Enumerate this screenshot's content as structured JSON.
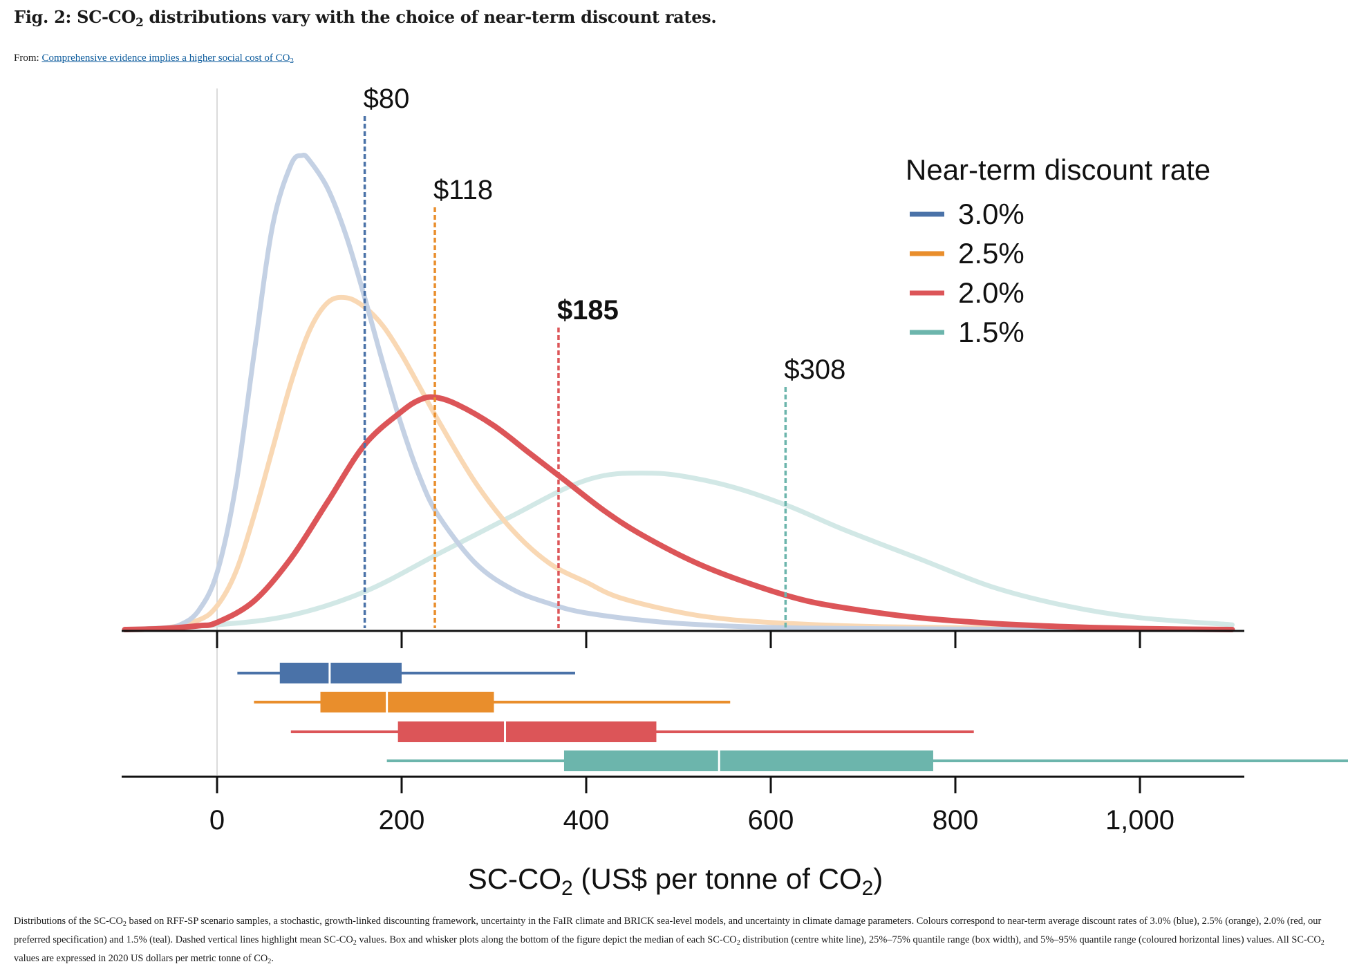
{
  "figure": {
    "title_prefix": "Fig. 2: SC-CO",
    "title_sub": "2",
    "title_suffix": " distributions vary with the choice of near-term discount rates.",
    "from_label": "From: ",
    "from_link_prefix": "Comprehensive evidence implies a higher social cost of CO",
    "from_link_sub": "2",
    "caption_parts": [
      "Distributions of the SC-CO",
      "2",
      " based on RFF-SP scenario samples, a stochastic, growth-linked discounting framework, uncertainty in the FaIR climate and BRICK sea-level models, and uncertainty in climate damage parameters. Colours correspond to near-term average discount rates of 3.0% (blue), 2.5% (orange), 2.0% (red, our preferred specification) and 1.5% (teal). Dashed vertical lines highlight mean SC-CO",
      "2",
      " values. Box and whisker plots along the bottom of the figure depict the median of each SC-CO",
      "2",
      " distribution (centre white line), 25%–75% quantile range (box width), and 5%–95% quantile range (coloured horizontal lines) values. All SC-CO",
      "2",
      " values are expressed in 2020 US dollars per metric tonne of CO",
      "2",
      "."
    ]
  },
  "chart_data": {
    "type": "area",
    "xlim": [
      -50,
      550
    ],
    "ylim": [
      0,
      1.1
    ],
    "x_ticks": [
      0,
      100,
      200,
      300,
      400,
      500
    ],
    "x_tick_labels": [
      "0",
      "200",
      "400",
      "600",
      "800",
      "1,000"
    ],
    "xlabel_prefix": "SC-CO",
    "xlabel_sub": "2",
    "xlabel_mid": " (US$ per tonne of CO",
    "xlabel_sub2": "2",
    "xlabel_suffix": ")",
    "grid": false,
    "legend_title": "Near-term discount rate",
    "legend_position": "top-right",
    "series": [
      {
        "name": "3.0%",
        "color": "#4a72a8",
        "density_color": "#c4d1e4",
        "mean": 80,
        "mean_label": "$80",
        "mean_label_bold": false,
        "density_peak_x": 46,
        "density_peak_y": 1.0,
        "whisker": [
          11,
          194
        ],
        "box": [
          34,
          100
        ],
        "median": 61,
        "density_x": [
          -50,
          -30,
          -20,
          -10,
          0,
          10,
          20,
          30,
          40,
          46,
          50,
          60,
          70,
          80,
          90,
          100,
          110,
          120,
          140,
          160,
          180,
          200,
          240,
          280,
          320,
          400,
          550
        ],
        "density_y": [
          0,
          0.003,
          0.01,
          0.04,
          0.12,
          0.3,
          0.58,
          0.85,
          0.98,
          1.0,
          0.99,
          0.93,
          0.83,
          0.7,
          0.56,
          0.43,
          0.32,
          0.24,
          0.14,
          0.085,
          0.055,
          0.035,
          0.016,
          0.007,
          0.003,
          0.001,
          0
        ]
      },
      {
        "name": "2.5%",
        "color": "#e98e2c",
        "density_color": "#f9d8b4",
        "mean": 118,
        "mean_label": "$118",
        "mean_label_bold": false,
        "density_peak_x": 70,
        "density_peak_y": 0.7,
        "whisker": [
          20,
          278
        ],
        "box": [
          56,
          150
        ],
        "median": 92,
        "density_x": [
          -50,
          -30,
          -10,
          0,
          10,
          20,
          30,
          40,
          50,
          60,
          70,
          80,
          90,
          100,
          110,
          120,
          140,
          160,
          180,
          200,
          220,
          260,
          300,
          360,
          450,
          550
        ],
        "density_y": [
          0,
          0.002,
          0.02,
          0.05,
          0.12,
          0.24,
          0.38,
          0.52,
          0.63,
          0.69,
          0.7,
          0.68,
          0.64,
          0.58,
          0.51,
          0.44,
          0.31,
          0.21,
          0.14,
          0.1,
          0.065,
          0.03,
          0.015,
          0.006,
          0.002,
          0
        ]
      },
      {
        "name": "2.0%",
        "color": "#dc5558",
        "density_color": "#dc5558",
        "mean": 185,
        "mean_label": "$185",
        "mean_label_bold": true,
        "density_peak_x": 118,
        "density_peak_y": 0.49,
        "whisker": [
          40,
          410
        ],
        "box": [
          98,
          238
        ],
        "median": 156,
        "density_x": [
          -50,
          -30,
          -10,
          0,
          20,
          40,
          60,
          80,
          100,
          110,
          118,
          130,
          150,
          170,
          190,
          210,
          230,
          260,
          290,
          320,
          350,
          380,
          420,
          460,
          500,
          550
        ],
        "density_y": [
          0,
          0.002,
          0.008,
          0.015,
          0.06,
          0.15,
          0.27,
          0.39,
          0.46,
          0.485,
          0.49,
          0.475,
          0.43,
          0.37,
          0.31,
          0.25,
          0.2,
          0.14,
          0.095,
          0.06,
          0.04,
          0.025,
          0.013,
          0.006,
          0.002,
          0
        ]
      },
      {
        "name": "1.5%",
        "color": "#6cb5ac",
        "density_color": "#d2e8e6",
        "mean": 308,
        "mean_label": "$308",
        "mean_label_bold": false,
        "density_peak_x": 230,
        "density_peak_y": 0.33,
        "whisker": [
          92,
          623
        ],
        "box": [
          188,
          388
        ],
        "median": 272,
        "density_x": [
          -50,
          0,
          40,
          80,
          120,
          160,
          190,
          210,
          230,
          250,
          280,
          310,
          340,
          380,
          420,
          460,
          500,
          550
        ],
        "density_y": [
          0,
          0.01,
          0.03,
          0.08,
          0.16,
          0.24,
          0.3,
          0.325,
          0.33,
          0.325,
          0.3,
          0.26,
          0.21,
          0.15,
          0.09,
          0.05,
          0.025,
          0.01
        ]
      }
    ]
  }
}
